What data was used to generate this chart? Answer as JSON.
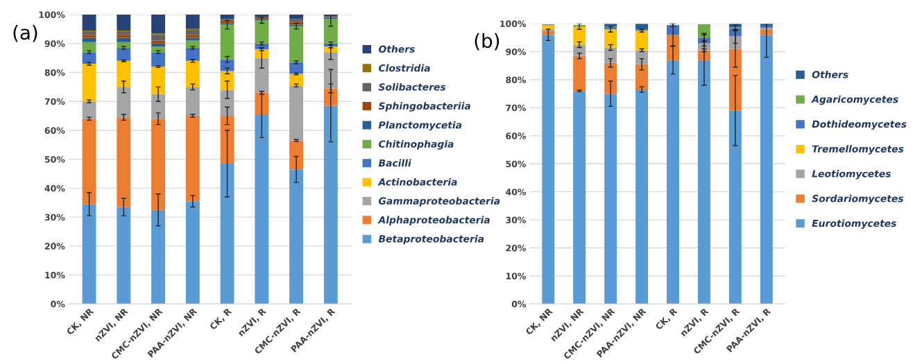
{
  "chart_data": [
    {
      "type": "bar",
      "title": "(a)",
      "stacked": true,
      "grid": "y",
      "legend": "right",
      "categories": [
        "CK, NR",
        "nZVI, NR",
        "CMC-nZVI, NR",
        "PAA-nZVI, NR",
        "CK, R",
        "nZVI, R",
        "CMC-nZVI, R",
        "PAA-nZVI, R"
      ],
      "ylim": [
        0,
        100
      ],
      "yticks": [
        {
          "value": 0,
          "label": "0%"
        },
        {
          "value": 10,
          "label": "10%"
        },
        {
          "value": 20,
          "label": "20%"
        },
        {
          "value": 30,
          "label": "30%"
        },
        {
          "value": 40,
          "label": "40%"
        },
        {
          "value": 50,
          "label": "50%"
        },
        {
          "value": 60,
          "label": "60%"
        },
        {
          "value": 70,
          "label": "70%"
        },
        {
          "value": 80,
          "label": "80%"
        },
        {
          "value": 90,
          "label": "90%"
        },
        {
          "value": 100,
          "label": "100%"
        }
      ],
      "series": [
        {
          "name": "Betaproteobacteria",
          "color": "#5b9bd5",
          "values": [
            34.5,
            33.5,
            32.5,
            35.5,
            48.5,
            65.5,
            46.5,
            68.5
          ],
          "errors": [
            4,
            3,
            5.5,
            2,
            11.5,
            8,
            4.5,
            12.5
          ]
        },
        {
          "name": "Alphaproteobacteria",
          "color": "#ed7d31",
          "values": [
            29.5,
            31,
            31.5,
            29.5,
            16.5,
            7.5,
            10,
            6
          ],
          "errors": [
            0.5,
            1,
            2,
            0.5,
            3,
            0.5,
            0.3,
            1.5
          ]
        },
        {
          "name": "Gammaproteobacteria",
          "color": "#a5a5a5",
          "values": [
            6,
            10.5,
            8.5,
            10,
            9,
            12,
            19,
            12.5
          ],
          "errors": [
            0.5,
            2,
            2.5,
            1,
            3,
            3.5,
            0.5,
            2.5
          ]
        },
        {
          "name": "Actinobacteria",
          "color": "#ffc000",
          "values": [
            13,
            9,
            9.5,
            9,
            6.5,
            3,
            4,
            2
          ],
          "errors": [
            0.5,
            0.3,
            0.3,
            0.5,
            1,
            0.5,
            0.3,
            0.5
          ]
        },
        {
          "name": "Bacilli",
          "color": "#4472c4",
          "values": [
            4,
            4.5,
            5,
            4.5,
            4,
            2,
            4,
            1
          ],
          "errors": [
            0.5,
            0.5,
            0.5,
            0.5,
            1,
            0.5,
            0.5,
            0.5
          ]
        },
        {
          "name": "Chitinophagia",
          "color": "#70ad47",
          "values": [
            3.5,
            2,
            2,
            2.5,
            12,
            8,
            12.5,
            8.5
          ],
          "errors": [
            null,
            null,
            null,
            null,
            1.5,
            1,
            1,
            2.5
          ]
        },
        {
          "name": "Planctomycetia",
          "color": "#255e91",
          "values": [
            1.5,
            1.5,
            1,
            1,
            0.5,
            0.5,
            0.5,
            0.5
          ]
        },
        {
          "name": "Sphingobacteriia",
          "color": "#9e480e",
          "values": [
            1,
            1,
            1,
            1,
            1,
            0.3,
            1,
            0.2
          ]
        },
        {
          "name": "Solibacteres",
          "color": "#636363",
          "values": [
            1,
            1,
            2,
            1.5,
            0.5,
            0.5,
            1,
            0.3
          ]
        },
        {
          "name": "Clostridia",
          "color": "#997300",
          "values": [
            0.5,
            0.5,
            0.5,
            0.5,
            0,
            0,
            0,
            0
          ]
        },
        {
          "name": "Others",
          "color": "#264478",
          "values": [
            5.5,
            5.5,
            6.5,
            5,
            1.5,
            0.7,
            1.5,
            0.5
          ]
        }
      ]
    },
    {
      "type": "bar",
      "title": "(b)",
      "stacked": true,
      "grid": "y",
      "legend": "right",
      "categories": [
        "CK, NR",
        "nZVI, NR",
        "CMC-nZVI, NR",
        "PAA-nZVI, NR",
        "CK, R",
        "nZVI, R",
        "CMC-nZVI, R",
        "PAA-nZVI, R"
      ],
      "ylim": [
        0,
        100
      ],
      "yticks": [
        {
          "value": 0,
          "label": "0%"
        },
        {
          "value": 10,
          "label": "10%"
        },
        {
          "value": 20,
          "label": "20%"
        },
        {
          "value": 30,
          "label": "30%"
        },
        {
          "value": 40,
          "label": "40%"
        },
        {
          "value": 50,
          "label": "50%"
        },
        {
          "value": 60,
          "label": "60%"
        },
        {
          "value": 70,
          "label": "70%"
        },
        {
          "value": 80,
          "label": "80%"
        },
        {
          "value": 90,
          "label": "90%"
        },
        {
          "value": 100,
          "label": "100%"
        }
      ],
      "series": [
        {
          "name": "Eurotiomycetes",
          "color": "#5b9bd5",
          "values": [
            96,
            76,
            75,
            76.5,
            87,
            87,
            69,
            96
          ],
          "errors": [
            2,
            0.3,
            4.5,
            1,
            5,
            9,
            12.5,
            8
          ]
        },
        {
          "name": "Sordariomycetes",
          "color": "#ed7d31",
          "values": [
            1.5,
            12.5,
            11,
            9,
            9,
            3.5,
            22,
            2
          ],
          "errors": [
            null,
            1,
            1.5,
            2,
            4,
            0.5,
            6.5,
            null
          ]
        },
        {
          "name": "Leotiomycetes",
          "color": "#a5a5a5",
          "values": [
            0.5,
            4,
            5.5,
            5,
            0,
            2.5,
            4.5,
            0.5
          ],
          "errors": [
            null,
            1,
            1,
            0.5,
            null,
            1,
            2.5,
            null
          ]
        },
        {
          "name": "Tremellomycetes",
          "color": "#ffc000",
          "values": [
            1.5,
            6.5,
            6.5,
            7,
            0,
            0,
            0,
            0
          ],
          "errors": [
            null,
            1,
            1,
            0.5,
            null,
            null,
            null,
            null
          ]
        },
        {
          "name": "Dothideomycetes",
          "color": "#4472c4",
          "values": [
            0.2,
            0.3,
            0.8,
            0.5,
            3.5,
            2,
            3,
            0.8
          ],
          "errors": [
            null,
            null,
            null,
            null,
            0.5,
            1.5,
            1,
            null
          ]
        },
        {
          "name": "Agaricomycetes",
          "color": "#70ad47",
          "values": [
            0,
            0.2,
            0.2,
            0,
            0,
            4.8,
            0.3,
            0
          ]
        },
        {
          "name": "Others",
          "color": "#255e91",
          "values": [
            null,
            null,
            1,
            2,
            null,
            null,
            1.2,
            0.7
          ]
        }
      ]
    }
  ]
}
